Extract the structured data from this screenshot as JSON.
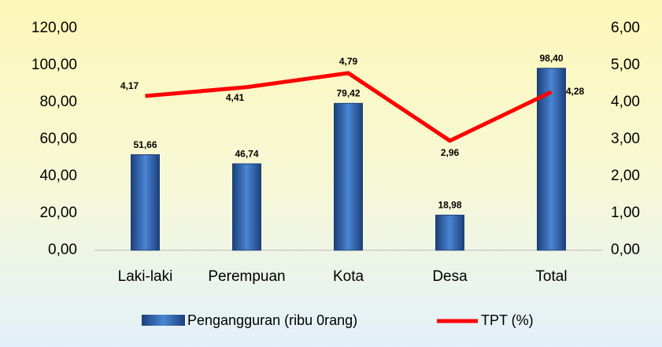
{
  "chart_data": {
    "type": "bar-line",
    "categories": [
      "Laki-laki",
      "Perempuan",
      "Kota",
      "Desa",
      "Total"
    ],
    "series": [
      {
        "name": "Pengangguran (ribu 0rang)",
        "type": "bar",
        "color": "#2e5fa8",
        "values": [
          51.66,
          46.74,
          79.42,
          18.98,
          98.4
        ],
        "value_labels": [
          "51,66",
          "46,74",
          "79,42",
          "18,98",
          "98,40"
        ]
      },
      {
        "name": "TPT (%)",
        "type": "line",
        "axis": "y2",
        "color": "#ff0000",
        "values": [
          4.17,
          4.41,
          4.79,
          2.96,
          4.28
        ],
        "value_labels": [
          "4,17",
          "4,41",
          "4,79",
          "2,96",
          "4,28"
        ]
      }
    ],
    "ylim": [
      0,
      120
    ],
    "yticks": [
      {
        "value": 0,
        "label": "0,00"
      },
      {
        "value": 20,
        "label": "20,00"
      },
      {
        "value": 40,
        "label": "40,00"
      },
      {
        "value": 60,
        "label": "60,00"
      },
      {
        "value": 80,
        "label": "80,00"
      },
      {
        "value": 100,
        "label": "100,00"
      },
      {
        "value": 120,
        "label": "120,00"
      }
    ],
    "y2lim": [
      0,
      6
    ],
    "y2ticks": [
      {
        "value": 0,
        "label": "0,00"
      },
      {
        "value": 1,
        "label": "1,00"
      },
      {
        "value": 2,
        "label": "2,00"
      },
      {
        "value": 3,
        "label": "3,00"
      },
      {
        "value": 4,
        "label": "4,00"
      },
      {
        "value": 5,
        "label": "5,00"
      },
      {
        "value": 6,
        "label": "6,00"
      }
    ],
    "grid": false,
    "legend": "bottom"
  }
}
